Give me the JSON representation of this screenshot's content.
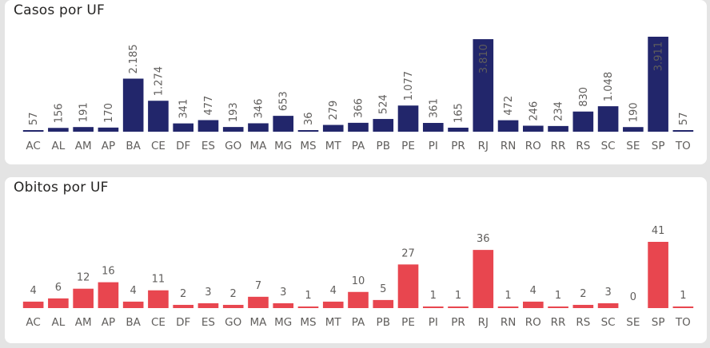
{
  "charts": {
    "casos": {
      "title": "Casos por UF",
      "color": "#22266b",
      "inside_label_color": "#ffffff",
      "outside_label_color": "#605e5c"
    },
    "obitos": {
      "title": "Obitos por UF",
      "color": "#e8464f",
      "outside_label_color": "#605e5c"
    }
  },
  "chart_data": [
    {
      "type": "bar",
      "title": "Casos por UF",
      "categories": [
        "AC",
        "AL",
        "AM",
        "AP",
        "BA",
        "CE",
        "DF",
        "ES",
        "GO",
        "MA",
        "MG",
        "MS",
        "MT",
        "PA",
        "PB",
        "PE",
        "PI",
        "PR",
        "RJ",
        "RN",
        "RO",
        "RR",
        "RS",
        "SC",
        "SE",
        "SP",
        "TO"
      ],
      "values": [
        57,
        156,
        191,
        170,
        2185,
        1274,
        341,
        477,
        193,
        346,
        653,
        36,
        279,
        366,
        524,
        1077,
        361,
        165,
        3810,
        472,
        246,
        234,
        830,
        1048,
        190,
        3911,
        57
      ],
      "labels": [
        "57",
        "156",
        "191",
        "170",
        "2.185",
        "1.274",
        "341",
        "477",
        "193",
        "346",
        "653",
        "36",
        "279",
        "366",
        "524",
        "1.077",
        "361",
        "165",
        "3.810",
        "472",
        "246",
        "234",
        "830",
        "1.048",
        "190",
        "3.911",
        "57"
      ],
      "label_orientation": "vertical",
      "ylim": [
        0,
        3911
      ],
      "grid": false
    },
    {
      "type": "bar",
      "title": "Obitos por UF",
      "categories": [
        "AC",
        "AL",
        "AM",
        "AP",
        "BA",
        "CE",
        "DF",
        "ES",
        "GO",
        "MA",
        "MG",
        "MS",
        "MT",
        "PA",
        "PB",
        "PE",
        "PI",
        "PR",
        "RJ",
        "RN",
        "RO",
        "RR",
        "RS",
        "SC",
        "SE",
        "SP",
        "TO"
      ],
      "values": [
        4,
        6,
        12,
        16,
        4,
        11,
        2,
        3,
        2,
        7,
        3,
        1,
        4,
        10,
        5,
        27,
        1,
        1,
        36,
        1,
        4,
        1,
        2,
        3,
        0,
        41,
        1
      ],
      "labels": [
        "4",
        "6",
        "12",
        "16",
        "4",
        "11",
        "2",
        "3",
        "2",
        "7",
        "3",
        "1",
        "4",
        "10",
        "5",
        "27",
        "1",
        "1",
        "36",
        "1",
        "4",
        "1",
        "2",
        "3",
        "0",
        "41",
        "1"
      ],
      "label_orientation": "horizontal",
      "ylim": [
        0,
        41
      ],
      "grid": false
    }
  ]
}
